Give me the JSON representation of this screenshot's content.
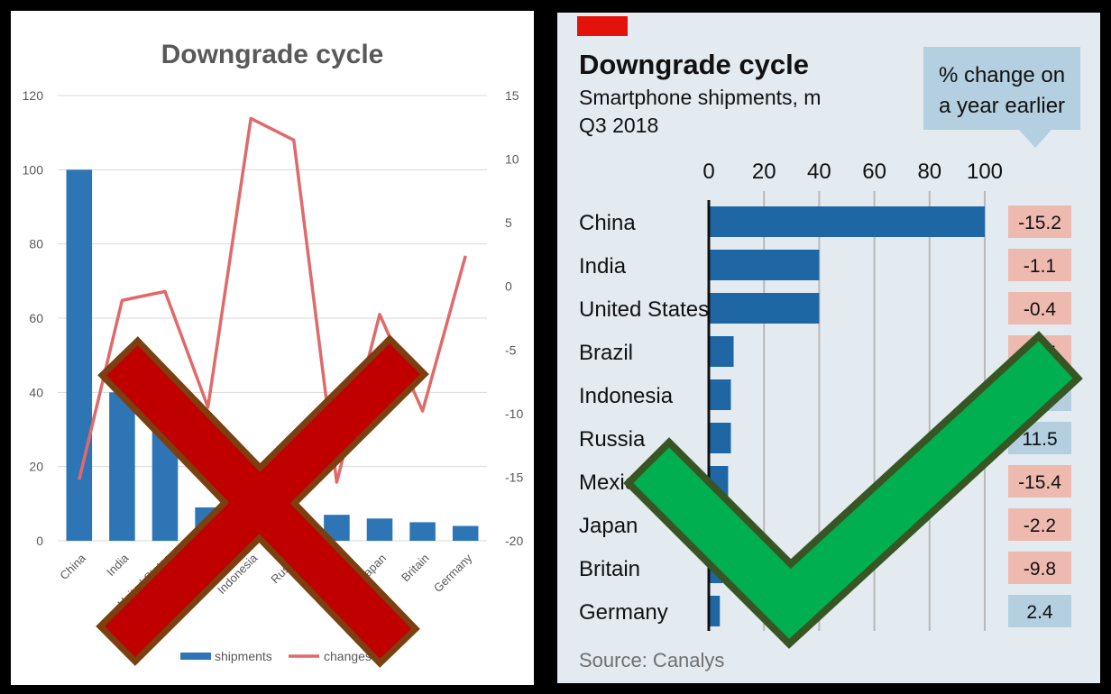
{
  "chart_data": [
    {
      "type": "bar",
      "title": "Downgrade cycle",
      "categories": [
        "China",
        "India",
        "United States",
        "Brazil",
        "Indonesia",
        "Russia",
        "Mexico",
        "Japan",
        "Britain",
        "Germany"
      ],
      "series": [
        {
          "name": "shipments",
          "type": "bar",
          "axis": "left",
          "values": [
            100,
            40,
            40,
            9,
            8,
            8,
            7,
            6,
            5,
            4
          ]
        },
        {
          "name": "changes",
          "type": "line",
          "axis": "right",
          "values": [
            -15.2,
            -1.1,
            -0.4,
            -9.5,
            13.2,
            11.5,
            -15.4,
            -2.2,
            -9.8,
            2.4
          ]
        }
      ],
      "ylim": [
        0,
        120
      ],
      "yticks": [
        "0",
        "20",
        "40",
        "60",
        "80",
        "100",
        "120"
      ],
      "y2lim": [
        -20,
        15
      ],
      "y2ticks": [
        "-20",
        "-15",
        "-10",
        "-5",
        "0",
        "5",
        "10",
        "15"
      ],
      "legend": "bottom",
      "grid": true,
      "colors": {
        "bars": "#2e75b6",
        "line": "#e06a6a"
      },
      "overlay": {
        "mark": "cross",
        "color": "#c00000",
        "outline": "#7b3f10"
      }
    },
    {
      "type": "bar",
      "orientation": "horizontal",
      "title": "Downgrade cycle",
      "subtitle": "Smartphone shipments, m",
      "subtitle2": "Q3 2018",
      "categories": [
        "China",
        "India",
        "United States",
        "Brazil",
        "Indonesia",
        "Russia",
        "Mexico",
        "Japan",
        "Britain",
        "Germany"
      ],
      "values": [
        100,
        40,
        40,
        9,
        8,
        8,
        7,
        6,
        5,
        4
      ],
      "xticks": [
        "0",
        "20",
        "40",
        "60",
        "80",
        "100"
      ],
      "xlim": [
        0,
        100
      ],
      "change_header": "% change on a year earlier",
      "change_header_lines": [
        "% change on",
        "a year earlier"
      ],
      "changes": [
        -15.2,
        -1.1,
        -0.4,
        -9.5,
        13.2,
        11.5,
        -15.4,
        -2.2,
        -9.8,
        2.4
      ],
      "change_labels": [
        "-15.2",
        "-1.1",
        "-0.4",
        "-9.5",
        "13.2",
        "11.5",
        "-15.4",
        "-2.2",
        "-9.8",
        "2.4"
      ],
      "source": "Source: Canalys",
      "grid": true,
      "colors": {
        "bars": "#1f67a4",
        "negative": "#eeb9af",
        "positive": "#b3cfe0",
        "background": "#e3eaf0",
        "accent": "#e3120b"
      },
      "overlay": {
        "mark": "check",
        "color": "#00b050",
        "outline": "#375623"
      }
    }
  ]
}
